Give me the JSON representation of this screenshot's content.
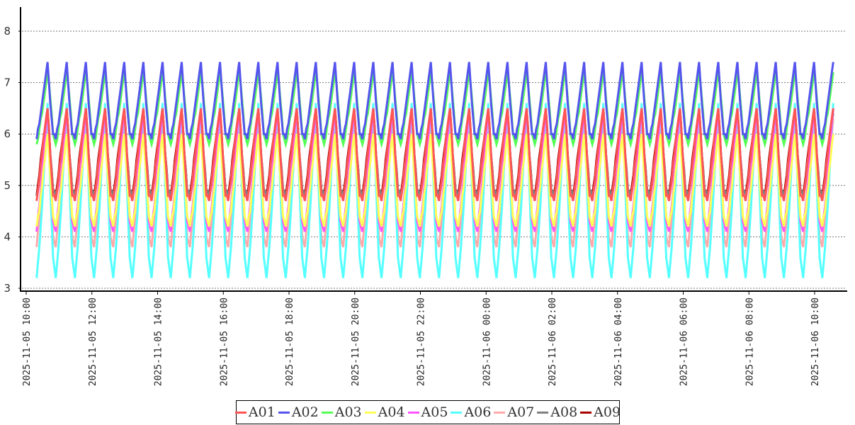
{
  "chart_data": {
    "type": "line",
    "title": "",
    "xlabel": "",
    "ylabel": "",
    "ylim": [
      3,
      8
    ],
    "yticks": [
      "3",
      "4",
      "5",
      "6",
      "7",
      "8"
    ],
    "xticks": [
      "2025-11-05 10:00",
      "2025-11-05 12:00",
      "2025-11-05 14:00",
      "2025-11-05 16:00",
      "2025-11-05 18:00",
      "2025-11-05 20:00",
      "2025-11-05 22:00",
      "2025-11-06 00:00",
      "2025-11-06 02:00",
      "2025-11-06 04:00",
      "2025-11-06 06:00",
      "2025-11-06 08:00",
      "2025-11-06 10:00"
    ],
    "x_range": [
      "2025-11-05 10:00",
      "2025-11-06 10:45"
    ],
    "data_start": "2025-11-05 10:19",
    "data_end": "2025-11-06 10:34",
    "cycle_minutes": 35,
    "sample_step_minutes": 5,
    "grid": "horizontal dotted",
    "legend_placement": "bottom-center",
    "series": [
      {
        "name": "A01",
        "color": "#ff5555",
        "cycle_profile": [
          4.7,
          5.1,
          5.6,
          6.1,
          6.5,
          5.6,
          4.8
        ]
      },
      {
        "name": "A02",
        "color": "#5555ee",
        "cycle_profile": [
          5.9,
          6.2,
          6.6,
          7.0,
          7.4,
          6.6,
          6.0
        ]
      },
      {
        "name": "A03",
        "color": "#55ff55",
        "cycle_profile": [
          5.8,
          6.1,
          6.4,
          6.8,
          7.2,
          6.7,
          6.0
        ]
      },
      {
        "name": "A04",
        "color": "#ffff55",
        "cycle_profile": [
          4.2,
          4.5,
          5.0,
          5.5,
          6.0,
          5.2,
          4.4
        ]
      },
      {
        "name": "A05",
        "color": "#ff55ff",
        "cycle_profile": [
          4.1,
          4.6,
          5.2,
          5.8,
          6.5,
          5.4,
          4.3
        ]
      },
      {
        "name": "A06",
        "color": "#55ffff",
        "cycle_profile": [
          3.2,
          3.8,
          4.6,
          5.6,
          6.6,
          5.0,
          3.6
        ]
      },
      {
        "name": "A07",
        "color": "#ffaaaa",
        "cycle_profile": [
          3.8,
          4.3,
          5.0,
          5.7,
          6.3,
          5.2,
          4.0
        ]
      },
      {
        "name": "A08",
        "color": "#808080",
        "cycle_profile": [
          4.8,
          5.1,
          5.6,
          6.0,
          6.4,
          5.6,
          4.9
        ]
      },
      {
        "name": "A09",
        "color": "#aa0000",
        "cycle_profile": [
          4.8,
          5.2,
          5.7,
          6.1,
          6.5,
          5.6,
          4.9
        ]
      }
    ]
  }
}
